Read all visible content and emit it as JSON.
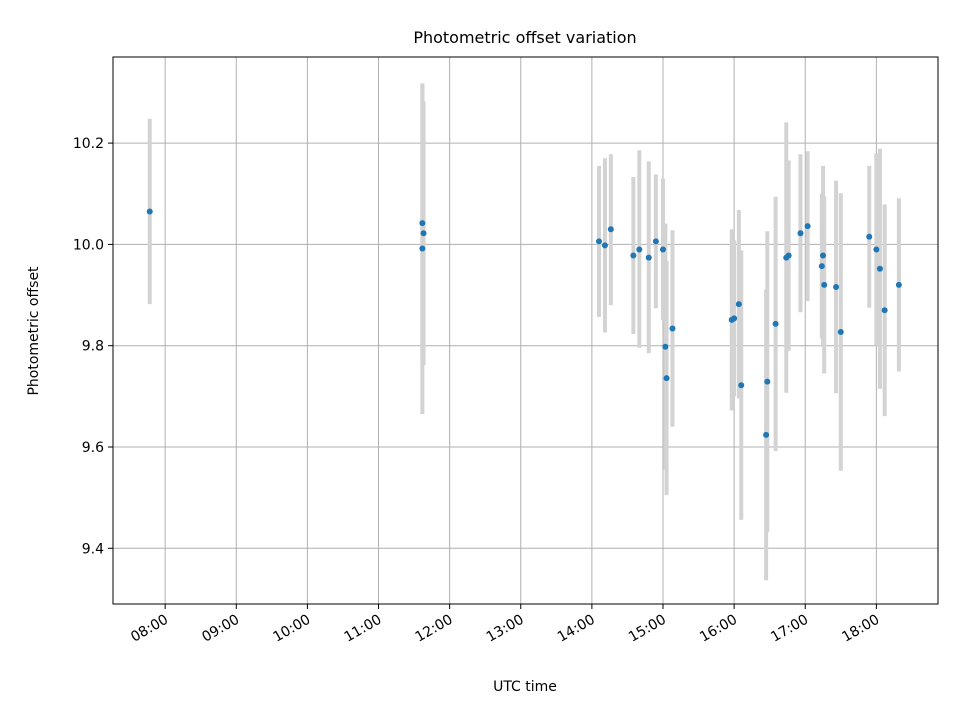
{
  "chart_data": {
    "type": "scatter",
    "title": "Photometric offset variation",
    "xlabel": "UTC time",
    "ylabel": "Photometric offset",
    "xlim": [
      "07:16",
      "18:52"
    ],
    "ylim": [
      9.29,
      10.37
    ],
    "x_ticks": [
      "08:00",
      "09:00",
      "10:00",
      "11:00",
      "12:00",
      "13:00",
      "14:00",
      "15:00",
      "16:00",
      "17:00",
      "18:00"
    ],
    "y_ticks": [
      9.4,
      9.6,
      9.8,
      10.0,
      10.2
    ],
    "grid": true,
    "marker_color": "#1f77b4",
    "errorbar_color": "#d3d3d3",
    "points": [
      {
        "t": "07:47",
        "y": 10.065,
        "lo": 9.882,
        "hi": 10.248
      },
      {
        "t": "11:37",
        "y": 10.042,
        "lo": 9.768,
        "hi": 10.316
      },
      {
        "t": "11:38",
        "y": 10.022,
        "lo": 9.762,
        "hi": 10.283
      },
      {
        "t": "11:37",
        "y": 9.992,
        "lo": 9.665,
        "hi": 10.318
      },
      {
        "t": "14:06",
        "y": 10.006,
        "lo": 9.857,
        "hi": 10.155
      },
      {
        "t": "14:11",
        "y": 9.998,
        "lo": 9.826,
        "hi": 10.17
      },
      {
        "t": "14:16",
        "y": 10.03,
        "lo": 9.88,
        "hi": 10.178
      },
      {
        "t": "14:35",
        "y": 9.978,
        "lo": 9.823,
        "hi": 10.133
      },
      {
        "t": "14:40",
        "y": 9.99,
        "lo": 9.796,
        "hi": 10.186
      },
      {
        "t": "14:48",
        "y": 9.974,
        "lo": 9.785,
        "hi": 10.164
      },
      {
        "t": "14:54",
        "y": 10.006,
        "lo": 9.874,
        "hi": 10.138
      },
      {
        "t": "15:00",
        "y": 9.99,
        "lo": 9.85,
        "hi": 10.13
      },
      {
        "t": "15:02",
        "y": 9.798,
        "lo": 9.555,
        "hi": 10.041
      },
      {
        "t": "15:03",
        "y": 9.736,
        "lo": 9.505,
        "hi": 9.967
      },
      {
        "t": "15:08",
        "y": 9.834,
        "lo": 9.64,
        "hi": 10.028
      },
      {
        "t": "15:58",
        "y": 9.851,
        "lo": 9.672,
        "hi": 10.03
      },
      {
        "t": "16:00",
        "y": 9.854,
        "lo": 9.7,
        "hi": 10.008
      },
      {
        "t": "16:04",
        "y": 9.882,
        "lo": 9.696,
        "hi": 10.068
      },
      {
        "t": "16:06",
        "y": 9.722,
        "lo": 9.456,
        "hi": 9.988
      },
      {
        "t": "16:27",
        "y": 9.624,
        "lo": 9.337,
        "hi": 9.911
      },
      {
        "t": "16:28",
        "y": 9.729,
        "lo": 9.432,
        "hi": 10.026
      },
      {
        "t": "16:35",
        "y": 9.843,
        "lo": 9.592,
        "hi": 10.094
      },
      {
        "t": "16:44",
        "y": 9.974,
        "lo": 9.707,
        "hi": 10.241
      },
      {
        "t": "16:46",
        "y": 9.978,
        "lo": 9.79,
        "hi": 10.166
      },
      {
        "t": "16:56",
        "y": 10.022,
        "lo": 9.866,
        "hi": 10.178
      },
      {
        "t": "17:02",
        "y": 10.036,
        "lo": 9.888,
        "hi": 10.184
      },
      {
        "t": "17:14",
        "y": 9.957,
        "lo": 9.814,
        "hi": 10.1
      },
      {
        "t": "17:15",
        "y": 9.978,
        "lo": 9.801,
        "hi": 10.155
      },
      {
        "t": "17:16",
        "y": 9.92,
        "lo": 9.745,
        "hi": 10.095
      },
      {
        "t": "17:26",
        "y": 9.916,
        "lo": 9.706,
        "hi": 10.126
      },
      {
        "t": "17:30",
        "y": 9.827,
        "lo": 9.553,
        "hi": 10.101
      },
      {
        "t": "17:54",
        "y": 10.015,
        "lo": 9.875,
        "hi": 10.155
      },
      {
        "t": "18:00",
        "y": 9.99,
        "lo": 9.8,
        "hi": 10.18
      },
      {
        "t": "18:03",
        "y": 9.952,
        "lo": 9.715,
        "hi": 10.189
      },
      {
        "t": "18:07",
        "y": 9.87,
        "lo": 9.661,
        "hi": 10.079
      },
      {
        "t": "18:19",
        "y": 9.92,
        "lo": 9.749,
        "hi": 10.091
      }
    ]
  }
}
